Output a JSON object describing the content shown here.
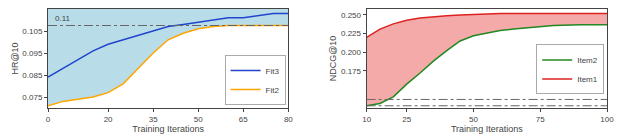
{
  "chart_data": [
    {
      "type": "line",
      "x_label": "Training Iterations",
      "y_label": "HR@10",
      "xlim": [
        0,
        80
      ],
      "ylim": [
        0.07,
        0.115
      ],
      "xticks": [
        0,
        20,
        35,
        50,
        65,
        80
      ],
      "yticks": [
        0.075,
        0.085,
        0.095,
        0.105
      ],
      "grid": false,
      "legend": "lower right",
      "annotations": [
        {
          "text": "0.11"
        }
      ],
      "hlines": [
        {
          "y": 0.1075,
          "color": "#666666",
          "line_style": "dashdot"
        }
      ],
      "fill": {
        "color": "#B8DDE8",
        "between": [
          "Fit2"
        ]
      },
      "x": [
        0,
        5,
        10,
        15,
        20,
        25,
        30,
        35,
        40,
        45,
        50,
        55,
        60,
        65,
        70,
        75,
        80
      ],
      "series": [
        {
          "name": "Fit2",
          "color": "#FFA500",
          "values": [
            0.071,
            0.073,
            0.074,
            0.075,
            0.077,
            0.081,
            0.088,
            0.095,
            0.101,
            0.104,
            0.106,
            0.107,
            0.1075,
            0.1075,
            0.1075,
            0.1075,
            0.1075
          ]
        },
        {
          "name": "Fit3",
          "color": "#2244CC",
          "values": [
            0.084,
            0.088,
            0.092,
            0.096,
            0.099,
            0.101,
            0.103,
            0.105,
            0.107,
            0.108,
            0.109,
            0.11,
            0.111,
            0.111,
            0.112,
            0.113,
            0.113
          ]
        }
      ]
    },
    {
      "type": "line",
      "x_label": "Training Iterations",
      "y_label": "NDCG@10",
      "xlim": [
        10,
        100
      ],
      "ylim": [
        0.125,
        0.258
      ],
      "xticks": [
        10,
        25,
        50,
        75,
        100
      ],
      "yticks": [
        0.175,
        {
          "value": 0.2,
          "label": "0.200"
        },
        0.225,
        {
          "value": 0.25,
          "label": "0.250"
        }
      ],
      "grid": false,
      "legend": "lower right",
      "hlines": [
        {
          "y": 0.1365,
          "color": "#666666",
          "line_style": "dashdot"
        },
        {
          "y": 0.128,
          "color": "#666666",
          "line_style": "dashdot"
        }
      ],
      "fill": {
        "color": "#F5AAAA",
        "between": [
          "Item2",
          "Item1"
        ]
      },
      "x": [
        10,
        15,
        20,
        25,
        30,
        35,
        40,
        45,
        50,
        55,
        60,
        65,
        70,
        75,
        80,
        90,
        100
      ],
      "series": [
        {
          "name": "Item1",
          "color": "#DD2222",
          "values": [
            0.22,
            0.231,
            0.238,
            0.243,
            0.246,
            0.248,
            0.249,
            0.25,
            0.251,
            0.251,
            0.252,
            0.252,
            0.252,
            0.252,
            0.252,
            0.252,
            0.252
          ]
        },
        {
          "name": "Item2",
          "color": "#228822",
          "values": [
            0.128,
            0.131,
            0.14,
            0.157,
            0.172,
            0.188,
            0.202,
            0.215,
            0.222,
            0.226,
            0.229,
            0.231,
            0.233,
            0.235,
            0.236,
            0.237,
            0.237
          ]
        }
      ]
    }
  ]
}
